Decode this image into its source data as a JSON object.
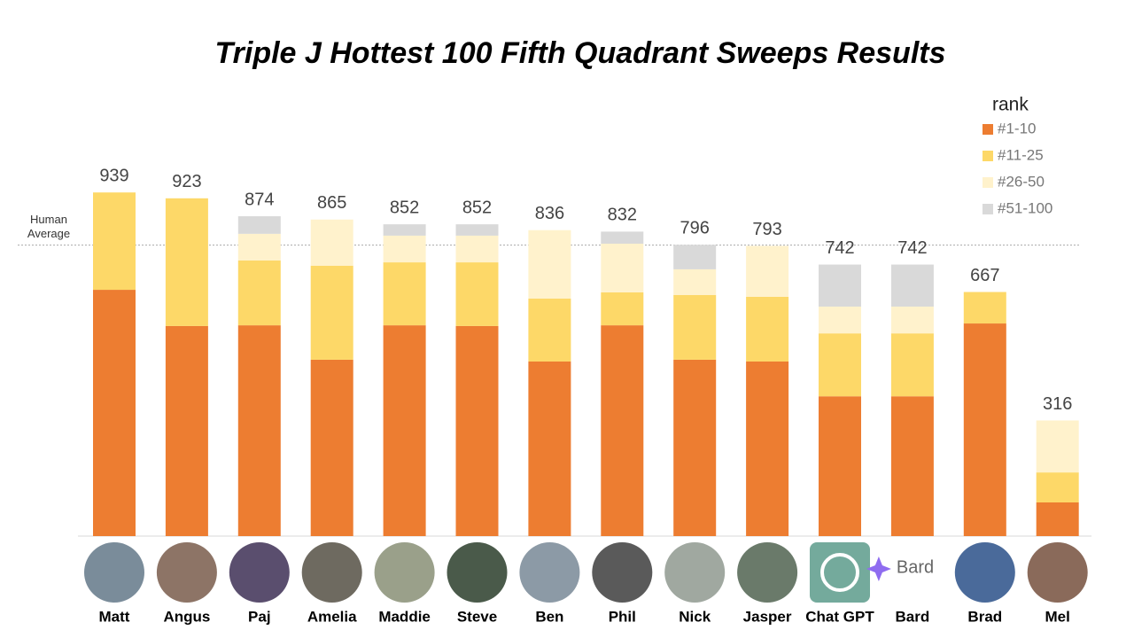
{
  "chart_data": {
    "type": "stacked-bar",
    "title": "Triple J Hottest 100 Fifth Quadrant Sweeps Results",
    "categories": [
      "Matt",
      "Angus",
      "Paj",
      "Amelia",
      "Maddie",
      "Steve",
      "Ben",
      "Phil",
      "Nick",
      "Jasper",
      "Chat GPT",
      "Bard",
      "Brad",
      "Mel"
    ],
    "legend_title": "rank",
    "series": [
      {
        "name": "#1-10",
        "color": "#ed7d31",
        "values": [
          673,
          574,
          576,
          482,
          576,
          574,
          477,
          576,
          482,
          477,
          382,
          382,
          581,
          92
        ]
      },
      {
        "name": "#11-25",
        "color": "#fdd868",
        "values": [
          266,
          349,
          177,
          257,
          172,
          174,
          172,
          90,
          177,
          177,
          172,
          172,
          86,
          82
        ]
      },
      {
        "name": "#26-50",
        "color": "#fff2cc",
        "values": [
          null,
          null,
          73,
          126,
          73,
          73,
          187,
          133,
          70,
          139,
          73,
          73,
          null,
          142
        ]
      },
      {
        "name": "#51-100",
        "color": "#d9d9d9",
        "values": [
          null,
          null,
          48,
          null,
          31,
          31,
          null,
          33,
          67,
          null,
          115,
          115,
          null,
          null
        ]
      }
    ],
    "totals": [
      939,
      923,
      874,
      865,
      852,
      852,
      836,
      832,
      796,
      793,
      742,
      742,
      667,
      316
    ],
    "human_average": 795,
    "annotation": "Human Average",
    "bard_logo_text": "Bard",
    "ylim": [
      0,
      1000
    ]
  }
}
